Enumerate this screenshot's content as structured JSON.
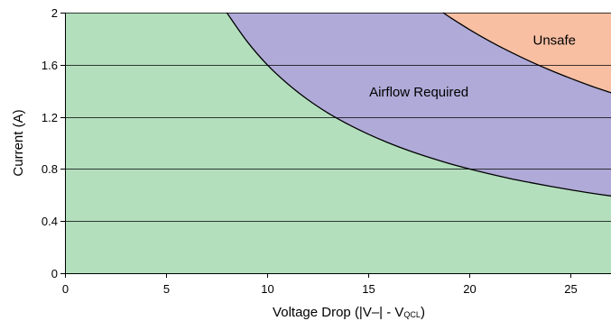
{
  "chart_data": {
    "type": "area",
    "title": "",
    "xlabel": "Voltage Drop (|V–| - V",
    "xlabel_subscript": "QCL",
    "xlabel_suffix": ")",
    "ylabel": "Current (A)",
    "xlim": [
      0,
      27
    ],
    "ylim": [
      0,
      2
    ],
    "x_ticks": [
      0,
      5,
      10,
      15,
      20,
      25
    ],
    "y_ticks": [
      0,
      0.4,
      0.8,
      1.2,
      1.6,
      2
    ],
    "x_tick_labels": [
      "0",
      "5",
      "10",
      "15",
      "20",
      "25"
    ],
    "y_tick_labels": [
      "0",
      "0.4",
      "0.8",
      "1.2",
      "1.6",
      "2"
    ],
    "grid": "horizontal",
    "regions": [
      {
        "label": "",
        "color": "#b3dfbd",
        "boundary": "below lower curve"
      },
      {
        "label": "Airflow Required",
        "color": "#b0aad8",
        "boundary": "between lower and upper curve"
      },
      {
        "label": "Unsafe",
        "color": "#f8bfa3",
        "boundary": "above upper curve"
      }
    ],
    "region_labels": [
      {
        "text": "Unsafe",
        "x": 24.2,
        "y": 1.79
      },
      {
        "text": "Airflow Required",
        "x": 17.5,
        "y": 1.39
      }
    ],
    "series": [
      {
        "x": [
          8,
          9,
          10,
          11,
          12,
          13,
          14,
          15,
          16,
          17,
          18,
          19,
          20,
          21,
          22,
          23,
          24,
          25,
          26,
          27
        ],
        "y": [
          2.0,
          1.78,
          1.6,
          1.455,
          1.333,
          1.23,
          1.143,
          1.067,
          1.0,
          0.941,
          0.889,
          0.842,
          0.8,
          0.762,
          0.727,
          0.696,
          0.667,
          0.64,
          0.615,
          0.593
        ]
      },
      {
        "x": [
          18.7,
          19,
          20,
          21,
          22,
          23,
          24,
          25,
          26,
          27
        ],
        "y": [
          2.0,
          1.968,
          1.87,
          1.781,
          1.7,
          1.626,
          1.558,
          1.496,
          1.438,
          1.385
        ]
      }
    ]
  }
}
